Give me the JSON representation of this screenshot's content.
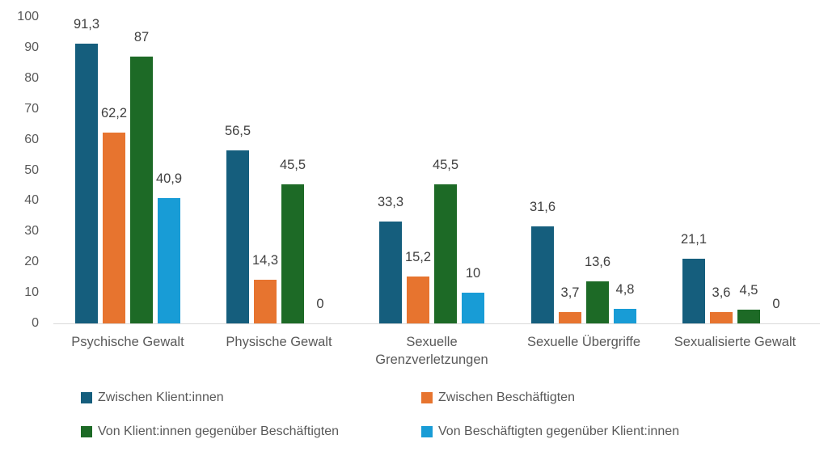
{
  "chart_data": {
    "type": "bar",
    "title": "",
    "xlabel": "",
    "ylabel": "",
    "ylim": [
      0,
      100
    ],
    "y_ticks": [
      "0",
      "10",
      "20",
      "30",
      "40",
      "50",
      "60",
      "70",
      "80",
      "90",
      "100"
    ],
    "grid": false,
    "legend_position": "bottom",
    "decimal_separator": ",",
    "categories": [
      "Psychische Gewalt",
      "Physische Gewalt",
      "Sexuelle Grenzverletzungen",
      "Sexuelle Übergriffe",
      "Sexualisierte Gewalt"
    ],
    "series": [
      {
        "name": "Zwischen Klient:innen",
        "color": "#155E7D",
        "values": [
          91.3,
          56.5,
          33.3,
          31.6,
          21.1
        ],
        "labels": [
          "91,3",
          "56,5",
          "33,3",
          "31,6",
          "21,1"
        ]
      },
      {
        "name": "Zwischen Beschäftigten",
        "color": "#E7742F",
        "values": [
          62.2,
          14.3,
          15.2,
          3.7,
          3.6
        ],
        "labels": [
          "62,2",
          "14,3",
          "15,2",
          "3,7",
          "3,6"
        ]
      },
      {
        "name": "Von Klient:innen gegenüber Beschäftigten",
        "color": "#1D6A26",
        "values": [
          87,
          45.5,
          45.5,
          13.6,
          4.5
        ],
        "labels": [
          "87",
          "45,5",
          "45,5",
          "13,6",
          "4,5"
        ]
      },
      {
        "name": "Von Beschäftigten gegenüber Klient:innen",
        "color": "#189CD6",
        "values": [
          40.9,
          0,
          10,
          4.8,
          0
        ],
        "labels": [
          "40,9",
          "0",
          "10",
          "4,8",
          "0"
        ]
      }
    ],
    "axis_color": "#d9d9d9",
    "tick_text_color": "#595959",
    "value_text_color": "#404040"
  }
}
